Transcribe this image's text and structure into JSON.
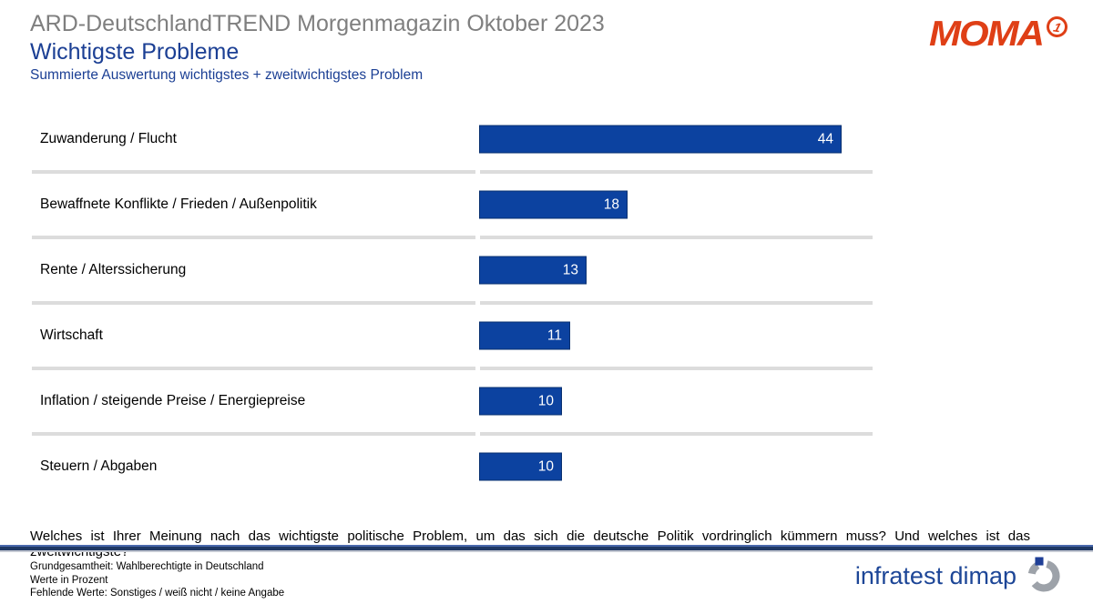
{
  "header": {
    "kicker": "ARD-DeutschlandTREND Morgenmagazin Oktober 2023",
    "title": "Wichtigste Probleme",
    "subtitle": "Summierte Auswertung wichtigstes + zweitwichtigstes Problem"
  },
  "logos": {
    "moma_text": "MOMA",
    "moma_badge": "1",
    "infratest_text": "infratest dimap"
  },
  "chart_data": {
    "type": "bar",
    "orientation": "horizontal",
    "title": "Wichtigste Probleme",
    "subtitle": "Summierte Auswertung wichtigstes + zweitwichtigstes Problem",
    "categories": [
      "Zuwanderung / Flucht",
      "Bewaffnete Konflikte / Frieden / Außenpolitik",
      "Rente / Alterssicherung",
      "Wirtschaft",
      "Inflation / steigende Preise / Energiepreise",
      "Steuern / Abgaben"
    ],
    "values": [
      44,
      18,
      13,
      11,
      10,
      10
    ],
    "unit": "percent",
    "xlim": [
      0,
      48
    ],
    "axis_visible": false,
    "value_labels": "inside-end",
    "bar_color": "#0c42a0",
    "bar_border_color": "#083070",
    "value_label_color": "#ffffff"
  },
  "footer": {
    "question": "Welches ist Ihrer Meinung nach das wichtigste politische Problem, um das sich die deutsche Politik vordringlich kümmern muss? Und welches ist das zweitwichtigste?",
    "notes": [
      "Grundgesamtheit: Wahlberechtigte in Deutschland",
      "Werte in Prozent",
      "Fehlende Werte: Sonstiges / weiß nicht / keine Angabe"
    ]
  }
}
